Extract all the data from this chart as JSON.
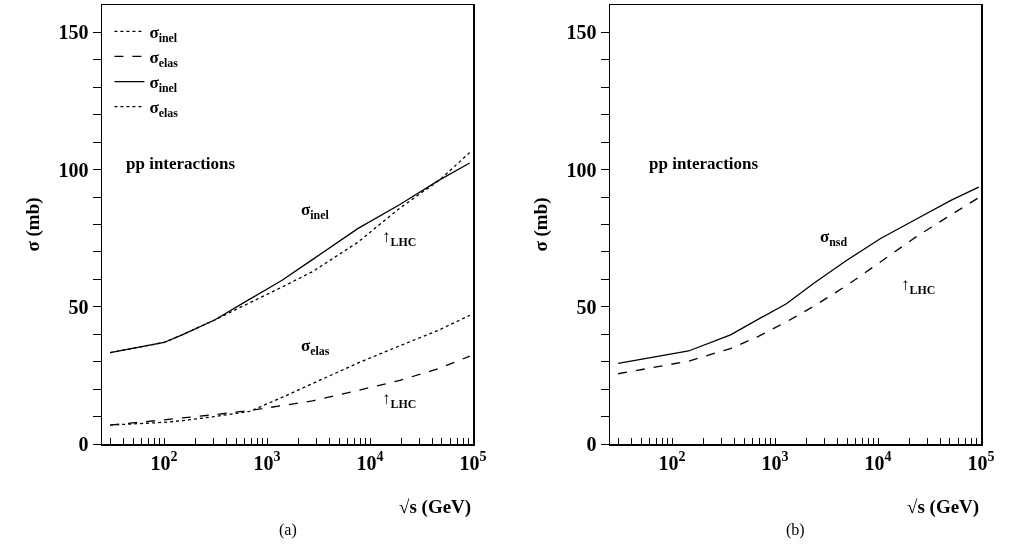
{
  "chart_data": [
    {
      "type": "line",
      "title": "(a)",
      "xlabel": "√s (GeV)",
      "ylabel": "σ (mb)",
      "log": "x",
      "legend": "top left",
      "grid": false,
      "x": [
        30,
        100,
        150,
        310,
        680,
        1400,
        2760,
        7600,
        19500,
        46500,
        93000
      ],
      "xlim": [
        25,
        100000
      ],
      "xticks": [
        {
          "value": 30,
          "label": null
        },
        {
          "value": 40,
          "label": null
        },
        {
          "value": 50,
          "label": null
        },
        {
          "value": 60,
          "label": null
        },
        {
          "value": 70,
          "label": null
        },
        {
          "value": 80,
          "label": null
        },
        {
          "value": 90,
          "label": null
        },
        {
          "value": 100,
          "label": "10$^{2}$"
        },
        {
          "value": 200,
          "label": null
        },
        {
          "value": 300,
          "label": null
        },
        {
          "value": 400,
          "label": null
        },
        {
          "value": 500,
          "label": null
        },
        {
          "value": 600,
          "label": null
        },
        {
          "value": 700,
          "label": null
        },
        {
          "value": 800,
          "label": null
        },
        {
          "value": 900,
          "label": null
        },
        {
          "value": 1000,
          "label": "10$^{3}$"
        },
        {
          "value": 2000,
          "label": null
        },
        {
          "value": 3000,
          "label": null
        },
        {
          "value": 4000,
          "label": null
        },
        {
          "value": 5000,
          "label": null
        },
        {
          "value": 6000,
          "label": null
        },
        {
          "value": 7000,
          "label": null
        },
        {
          "value": 8000,
          "label": null
        },
        {
          "value": 9000,
          "label": null
        },
        {
          "value": 10000,
          "label": "10$^{4}$"
        },
        {
          "value": 20000,
          "label": null
        },
        {
          "value": 30000,
          "label": null
        },
        {
          "value": 40000,
          "label": null
        },
        {
          "value": 50000,
          "label": null
        },
        {
          "value": 60000,
          "label": null
        },
        {
          "value": 70000,
          "label": null
        },
        {
          "value": 80000,
          "label": null
        },
        {
          "value": 90000,
          "label": null
        },
        {
          "value": 100000,
          "label": "10$^{5}$"
        }
      ],
      "ylim": [
        0,
        160
      ],
      "yticks": [
        0,
        {
          "value": 10,
          "label": null
        },
        {
          "value": 20,
          "label": null
        },
        {
          "value": 30,
          "label": null
        },
        {
          "value": 40,
          "label": null
        },
        50,
        {
          "value": 60,
          "label": null
        },
        {
          "value": 70,
          "label": null
        },
        {
          "value": 80,
          "label": null
        },
        {
          "value": 90,
          "label": null
        },
        100,
        {
          "value": 110,
          "label": null
        },
        {
          "value": 120,
          "label": null
        },
        {
          "value": 130,
          "label": null
        },
        {
          "value": 140,
          "label": null
        },
        150
      ],
      "series": [
        {
          "name": "σ$_{inel}$",
          "color": "#000000",
          "line_style": "dotted",
          "values": [
            33.3,
            37,
            39.8,
            45.2,
            51.5,
            57.2,
            62.8,
            73.5,
            86,
            96,
            106.2
          ]
        },
        {
          "name": "σ$_{elas}$",
          "color": "#000000",
          "line_style": "dashed",
          "values": [
            6.9,
            8.8,
            9.5,
            10.7,
            12.2,
            14,
            15.7,
            19.5,
            23.2,
            27.5,
            32
          ]
        },
        {
          "name": "σ$_{inel}$",
          "color": "#000000",
          "line_style": "solid",
          "values": [
            33.3,
            37,
            39.8,
            45.2,
            52.8,
            59.7,
            67.2,
            78.5,
            87.3,
            96.1,
            102.4
          ]
        },
        {
          "name": "σ$_{elas}$",
          "color": "#000000",
          "line_style": "dotted",
          "values": [
            6.9,
            7.9,
            8.5,
            10,
            11.9,
            17,
            22,
            29.5,
            35.8,
            41.5,
            46.9
          ]
        }
      ],
      "annotations": [
        "pp interactions",
        "σ$_{inel}$",
        "σ$_{elas}$",
        "↑$_{LHC}$",
        "↑$_{LHC}$"
      ]
    },
    {
      "type": "line",
      "title": "(b)",
      "xlabel": "√s (GeV)",
      "ylabel": "σ (mb)",
      "log": "x",
      "legend": false,
      "grid": false,
      "x": [
        30,
        145,
        370,
        690,
        1290,
        2400,
        4900,
        10700,
        23400,
        51000,
        95000
      ],
      "xlim": [
        25,
        100000
      ],
      "xticks": [
        {
          "value": 30,
          "label": null
        },
        {
          "value": 40,
          "label": null
        },
        {
          "value": 50,
          "label": null
        },
        {
          "value": 60,
          "label": null
        },
        {
          "value": 70,
          "label": null
        },
        {
          "value": 80,
          "label": null
        },
        {
          "value": 90,
          "label": null
        },
        {
          "value": 100,
          "label": "10$^{2}$"
        },
        {
          "value": 200,
          "label": null
        },
        {
          "value": 300,
          "label": null
        },
        {
          "value": 400,
          "label": null
        },
        {
          "value": 500,
          "label": null
        },
        {
          "value": 600,
          "label": null
        },
        {
          "value": 700,
          "label": null
        },
        {
          "value": 800,
          "label": null
        },
        {
          "value": 900,
          "label": null
        },
        {
          "value": 1000,
          "label": "10$^{3}$"
        },
        {
          "value": 2000,
          "label": null
        },
        {
          "value": 3000,
          "label": null
        },
        {
          "value": 4000,
          "label": null
        },
        {
          "value": 5000,
          "label": null
        },
        {
          "value": 6000,
          "label": null
        },
        {
          "value": 7000,
          "label": null
        },
        {
          "value": 8000,
          "label": null
        },
        {
          "value": 9000,
          "label": null
        },
        {
          "value": 10000,
          "label": "10$^{4}$"
        },
        {
          "value": 20000,
          "label": null
        },
        {
          "value": 30000,
          "label": null
        },
        {
          "value": 40000,
          "label": null
        },
        {
          "value": 50000,
          "label": null
        },
        {
          "value": 60000,
          "label": null
        },
        {
          "value": 70000,
          "label": null
        },
        {
          "value": 80000,
          "label": null
        },
        {
          "value": 90000,
          "label": null
        },
        {
          "value": 100000,
          "label": "10$^{5}$"
        }
      ],
      "ylim": [
        0,
        160
      ],
      "yticks": [
        0,
        {
          "value": 10,
          "label": null
        },
        {
          "value": 20,
          "label": null
        },
        {
          "value": 30,
          "label": null
        },
        {
          "value": 40,
          "label": null
        },
        50,
        {
          "value": 60,
          "label": null
        },
        {
          "value": 70,
          "label": null
        },
        {
          "value": 80,
          "label": null
        },
        {
          "value": 90,
          "label": null
        },
        100,
        {
          "value": 110,
          "label": null
        },
        {
          "value": 120,
          "label": null
        },
        {
          "value": 130,
          "label": null
        },
        {
          "value": 140,
          "label": null
        },
        150
      ],
      "series": [
        {
          "color": "#000000",
          "line_style": "dashed",
          "values": [
            25.6,
            30.2,
            34.8,
            39.2,
            44.5,
            50.3,
            57.6,
            66.5,
            75.5,
            83.5,
            89.8
          ]
        },
        {
          "color": "#000000",
          "line_style": "solid",
          "values": [
            29.4,
            33.9,
            39.8,
            45.5,
            51.1,
            58.7,
            66.8,
            75,
            81.9,
            88.8,
            93.6
          ]
        }
      ],
      "annotations": [
        "pp interactions",
        "σ$_{nsd}$",
        "↑$_{LHC}$"
      ]
    }
  ]
}
